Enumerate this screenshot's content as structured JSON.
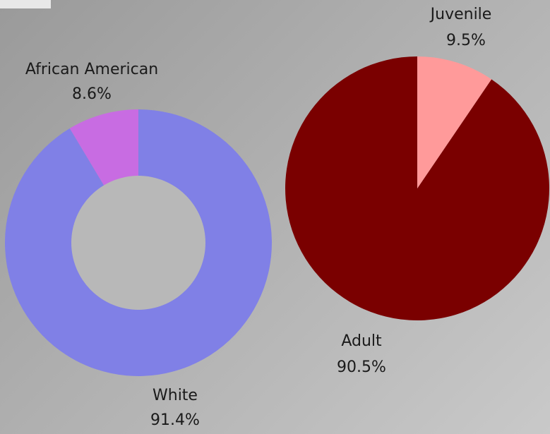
{
  "chart_data": [
    {
      "type": "pie",
      "style": "donut",
      "slices": [
        {
          "label": "White",
          "value_label": "91.4%",
          "value": 91.4,
          "color": "#8080e6"
        },
        {
          "label": "African American",
          "value_label": "8.6%",
          "value": 8.6,
          "color": "#c86ce2"
        }
      ],
      "hole_color": "#b8b8b8"
    },
    {
      "type": "pie",
      "style": "pie",
      "slices": [
        {
          "label": "Adult",
          "value_label": "90.5%",
          "value": 90.5,
          "color": "#7a0000"
        },
        {
          "label": "Juvenile",
          "value_label": "9.5%",
          "value": 9.5,
          "color": "#ff9a9a"
        }
      ]
    }
  ]
}
